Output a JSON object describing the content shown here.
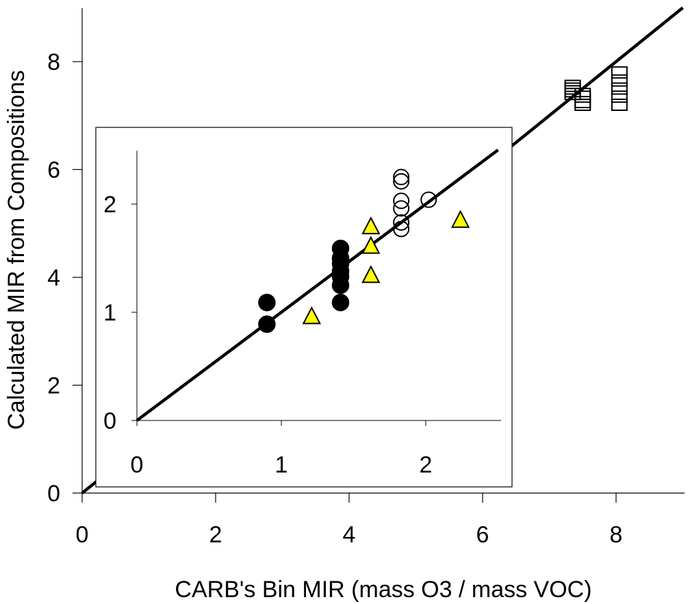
{
  "chart_data": [
    {
      "type": "scatter",
      "title": "",
      "xlabel": "CARB's Bin MIR (mass O3 / mass VOC)",
      "ylabel": "Calculated MIR from Compositions",
      "xlim": [
        0,
        9
      ],
      "ylim": [
        0,
        9
      ],
      "xticks": [
        0,
        2,
        4,
        6,
        8
      ],
      "yticks": [
        0,
        2,
        4,
        6,
        8
      ],
      "grid": false,
      "fit_line": {
        "x": [
          0,
          9
        ],
        "y": [
          0,
          9
        ]
      },
      "series": [
        {
          "marker": "open-square",
          "x": [
            7.35,
            7.35,
            7.35,
            7.35,
            7.5,
            7.5,
            7.5,
            7.5,
            8.05,
            8.05,
            8.05,
            8.05,
            8.05
          ],
          "y": [
            7.55,
            7.5,
            7.45,
            7.4,
            7.4,
            7.35,
            7.25,
            7.2,
            7.8,
            7.65,
            7.5,
            7.35,
            7.2
          ]
        }
      ]
    },
    {
      "type": "scatter",
      "title": "",
      "xlabel": "",
      "ylabel": "",
      "xlim": [
        0,
        2.5
      ],
      "ylim": [
        0,
        2.5
      ],
      "xticks": [
        0,
        1,
        2
      ],
      "yticks": [
        0,
        1,
        2
      ],
      "grid": false,
      "fit_line": {
        "x": [
          0,
          2.5
        ],
        "y": [
          0,
          2.5
        ]
      },
      "series": [
        {
          "marker": "filled-circle",
          "color": "#000000",
          "x": [
            0.9,
            0.9,
            1.41,
            1.41,
            1.41,
            1.41,
            1.41,
            1.41,
            1.41
          ],
          "y": [
            1.09,
            0.89,
            1.59,
            1.5,
            1.45,
            1.38,
            1.33,
            1.25,
            1.09
          ]
        },
        {
          "marker": "open-circle",
          "x": [
            1.83,
            1.83,
            1.83,
            1.83,
            1.83,
            1.83,
            2.02
          ],
          "y": [
            2.25,
            2.21,
            2.03,
            1.96,
            1.83,
            1.77,
            2.04
          ]
        },
        {
          "marker": "yellow-triangle",
          "color": "#FFFF00",
          "x": [
            1.21,
            1.62,
            1.62,
            1.62,
            2.24
          ],
          "y": [
            0.96,
            1.79,
            1.61,
            1.34,
            1.85
          ]
        }
      ]
    }
  ]
}
